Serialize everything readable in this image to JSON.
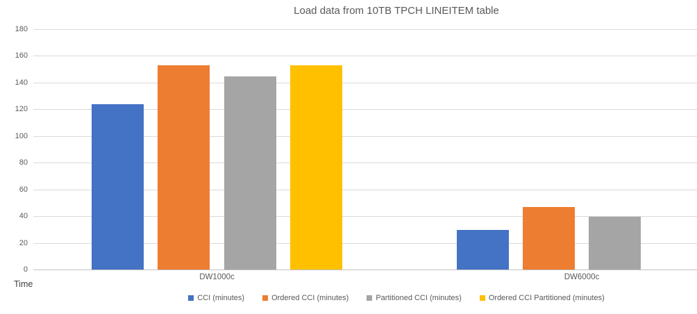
{
  "chart_data": {
    "type": "bar",
    "title": "Load data from 10TB TPCH LINEITEM table",
    "categories": [
      "DW1000c",
      "DW6000c"
    ],
    "series": [
      {
        "name": "CCI (minutes)",
        "color": "#4472C4",
        "values": [
          124,
          30
        ]
      },
      {
        "name": "Ordered CCI (minutes)",
        "color": "#ED7D31",
        "values": [
          153,
          47
        ]
      },
      {
        "name": "Partitioned CCI (minutes)",
        "color": "#A5A5A5",
        "values": [
          145,
          40
        ]
      },
      {
        "name": "Ordered CCI Partitioned (minutes)",
        "color": "#FFC000",
        "values": [
          153,
          null
        ]
      }
    ],
    "ylabel": "Time",
    "xlabel": "",
    "ylim": [
      0,
      180
    ],
    "yticks": [
      0,
      20,
      40,
      60,
      80,
      100,
      120,
      140,
      160,
      180
    ],
    "grid": true,
    "legend_position": "bottom"
  },
  "styles": {
    "text_color": "#595959",
    "gridline_color": "#D9D9D9",
    "axis_line_color": "#C3C3C3",
    "background": "#FFFFFF"
  }
}
